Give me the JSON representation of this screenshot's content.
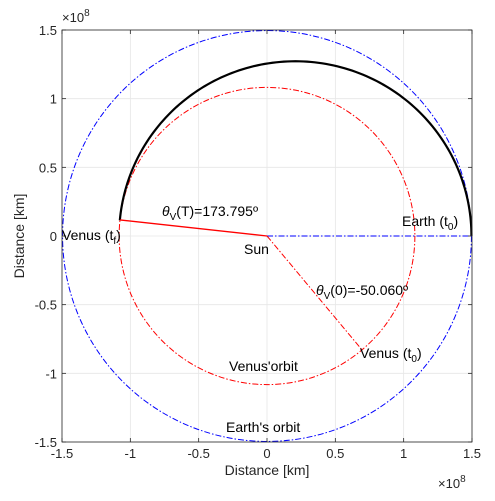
{
  "chart_data": {
    "type": "line",
    "xlabel": "Distance [km]",
    "ylabel": "Distance [km]",
    "x_multiplier": "×10",
    "x_multiplier_exp": "8",
    "y_multiplier": "×10",
    "y_multiplier_exp": "8",
    "xlim": [
      -1.5,
      1.5
    ],
    "ylim": [
      -1.5,
      1.5
    ],
    "xticks": [
      -1.5,
      -1,
      -0.5,
      0,
      0.5,
      1,
      1.5
    ],
    "xtick_labels": [
      "-1.5",
      "-1",
      "-0.5",
      "0",
      "0.5",
      "1",
      "1.5"
    ],
    "yticks": [
      -1.5,
      -1,
      -0.5,
      0,
      0.5,
      1,
      1.5
    ],
    "ytick_labels": [
      "-1.5",
      "-1",
      "-0.5",
      "0",
      "0.5",
      "1",
      "1.5"
    ],
    "grid": true,
    "units_scale": 100000000,
    "series": [
      {
        "key": "earth_orbit",
        "style": "dash-dot",
        "color": "#0000ff",
        "radius": 1.496
      },
      {
        "key": "venus_orbit",
        "style": "dash-dot",
        "color": "#ff0000",
        "radius": 1.082
      },
      {
        "key": "transfer",
        "style": "solid",
        "color": "#000000",
        "start": [
          1.496,
          0
        ],
        "end": [
          -1.082,
          0.114
        ],
        "periapsis": 1.082,
        "apoapsis": 1.496
      },
      {
        "key": "sun_to_earth",
        "style": "dash-dot",
        "color": "#0000ff",
        "from": [
          0,
          0
        ],
        "to": [
          1.496,
          0
        ]
      },
      {
        "key": "sun_to_venus_t0",
        "style": "dash-dot",
        "color": "#ff0000",
        "from": [
          0,
          0
        ],
        "to": [
          0.695,
          -0.829
        ]
      },
      {
        "key": "sun_to_venus_tf",
        "style": "solid",
        "color": "#ff0000",
        "from": [
          0,
          0
        ],
        "to": [
          -1.076,
          0.117
        ]
      }
    ],
    "annotations": {
      "theta_T": {
        "sym": "θ",
        "sub": "V",
        "rest": "(T)=173.795º"
      },
      "theta_0": {
        "sym": "θ",
        "sub": "V",
        "rest": "(0)=-50.060º"
      },
      "venus_tf": {
        "main": "Venus (t",
        "sub": "f",
        "close": ")"
      },
      "earth_t0": {
        "main": "Earth (t",
        "sub": "0",
        "close": ")"
      },
      "venus_t0": {
        "main": "Venus (t",
        "sub": "0",
        "close": ")"
      },
      "sun": "Sun",
      "venus_orbit_label": "Venus'orbit",
      "earth_orbit_label": "Earth's orbit"
    }
  }
}
